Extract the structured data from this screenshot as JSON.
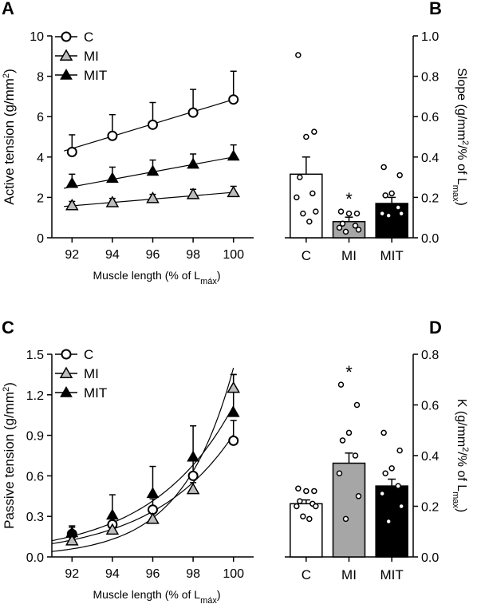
{
  "panels": {
    "A": "A",
    "B": "B",
    "C": "C",
    "D": "D"
  },
  "chart_data": [
    {
      "id": "A",
      "type": "line",
      "xlabel": "Muscle length (% of L",
      "xlabel_sub": "máx",
      "xlabel_close": ")",
      "ylabel": "Active tension (g/mm",
      "ylabel_sup": "2",
      "ylabel_close": ")",
      "x_ticks": [
        92,
        94,
        96,
        98,
        100
      ],
      "y_ticks": [
        0,
        2,
        4,
        6,
        8,
        10
      ],
      "xlim": [
        91,
        101
      ],
      "ylim": [
        0,
        10
      ],
      "legend_position": "top-left",
      "series": [
        {
          "name": "C",
          "marker": "circle-open",
          "x": [
            92,
            94,
            96,
            98,
            100
          ],
          "y": [
            4.25,
            5.05,
            5.6,
            6.2,
            6.85
          ],
          "err": [
            0.85,
            1.05,
            1.1,
            1.15,
            1.4
          ],
          "fit": [
            4.3,
            6.85
          ]
        },
        {
          "name": "MI",
          "marker": "triangle-open",
          "x": [
            92,
            94,
            96,
            98,
            100
          ],
          "y": [
            1.6,
            1.75,
            1.95,
            2.15,
            2.25
          ],
          "err": [
            0.2,
            0.2,
            0.2,
            0.25,
            0.3
          ],
          "fit": [
            1.55,
            2.25
          ]
        },
        {
          "name": "MIT",
          "marker": "triangle-filled",
          "x": [
            92,
            94,
            96,
            98,
            100
          ],
          "y": [
            2.7,
            2.95,
            3.3,
            3.65,
            4.05
          ],
          "err": [
            0.45,
            0.55,
            0.55,
            0.5,
            0.55
          ],
          "fit": [
            2.45,
            4.0
          ]
        }
      ]
    },
    {
      "id": "B",
      "type": "bar",
      "categories": [
        "C",
        "MI",
        "MIT"
      ],
      "values": [
        0.315,
        0.08,
        0.17
      ],
      "sem": [
        0.085,
        0.022,
        0.03
      ],
      "colors": [
        "#ffffff",
        "#a6a6a6",
        "#000000"
      ],
      "ylabel": "Slope  (g/mm",
      "ylabel_sup": "2",
      "ylabel_mid": "/% of L",
      "ylabel_sub": "max",
      "ylabel_close": ")",
      "y_ticks": [
        0.0,
        0.2,
        0.4,
        0.6,
        0.8,
        1.0
      ],
      "ylim": [
        0,
        1.0
      ],
      "points": [
        [
          0.905,
          0.525,
          0.5,
          0.3,
          0.22,
          0.2,
          0.13,
          0.12,
          0.08
        ],
        [
          0.13,
          0.12,
          0.12,
          0.07,
          0.06,
          0.05,
          0.04,
          0.03
        ],
        [
          0.35,
          0.31,
          0.22,
          0.21,
          0.15,
          0.12,
          0.12,
          0.11
        ]
      ],
      "annotations": [
        {
          "category": "MI",
          "text": "*"
        }
      ]
    },
    {
      "id": "C",
      "type": "line",
      "xlabel": "Muscle length (% of L",
      "xlabel_sub": "máx",
      "xlabel_close": ")",
      "ylabel": "Passive tension (g/mm",
      "ylabel_sup": "2",
      "ylabel_close": ")",
      "x_ticks": [
        92,
        94,
        96,
        98,
        100
      ],
      "y_ticks": [
        "0.0",
        "0.3",
        "0.6",
        "0.9",
        "1.2",
        "1.5"
      ],
      "xlim": [
        91,
        101
      ],
      "ylim": [
        0,
        1.5
      ],
      "legend_position": "top-left",
      "series": [
        {
          "name": "C",
          "marker": "circle-open",
          "x": [
            92,
            94,
            96,
            98,
            100
          ],
          "y": [
            0.17,
            0.24,
            0.35,
            0.6,
            0.86
          ],
          "err": [
            0.05,
            0.07,
            0.08,
            0.12,
            0.15
          ],
          "fit_curve": {
            "a": 0.098,
            "b": 0.247
          }
        },
        {
          "name": "MI",
          "marker": "triangle-open",
          "x": [
            92,
            94,
            96,
            98,
            100
          ],
          "y": [
            0.12,
            0.2,
            0.28,
            0.5,
            1.25
          ],
          "err": [
            0.04,
            0.05,
            0.05,
            0.05,
            0.1
          ],
          "fit_curve": {
            "a": 0.04,
            "b": 0.395
          }
        },
        {
          "name": "MIT",
          "marker": "triangle-filled",
          "x": [
            92,
            94,
            96,
            98,
            100
          ],
          "y": [
            0.18,
            0.31,
            0.47,
            0.74,
            1.07
          ],
          "err": [
            0.05,
            0.15,
            0.2,
            0.23,
            0.28
          ],
          "fit_curve": {
            "a": 0.12,
            "b": 0.248
          }
        }
      ]
    },
    {
      "id": "D",
      "type": "bar",
      "categories": [
        "C",
        "MI",
        "MIT"
      ],
      "values": [
        0.21,
        0.37,
        0.28
      ],
      "sem": [
        0.015,
        0.04,
        0.027
      ],
      "colors": [
        "#ffffff",
        "#a6a6a6",
        "#000000"
      ],
      "ylabel": "K (g/mm",
      "ylabel_sup": "2",
      "ylabel_mid": "/% of L",
      "ylabel_sub": "max",
      "ylabel_close": ")",
      "y_ticks": [
        0.0,
        0.2,
        0.4,
        0.6,
        0.8
      ],
      "ylim": [
        0,
        0.8
      ],
      "points": [
        [
          0.27,
          0.26,
          0.26,
          0.22,
          0.21,
          0.2,
          0.2,
          0.16,
          0.15
        ],
        [
          0.68,
          0.6,
          0.49,
          0.46,
          0.4,
          0.33,
          0.24,
          0.15
        ],
        [
          0.49,
          0.42,
          0.35,
          0.33,
          0.28,
          0.25,
          0.2,
          0.14
        ]
      ],
      "annotations": [
        {
          "category": "MI",
          "text": "*"
        }
      ]
    }
  ]
}
